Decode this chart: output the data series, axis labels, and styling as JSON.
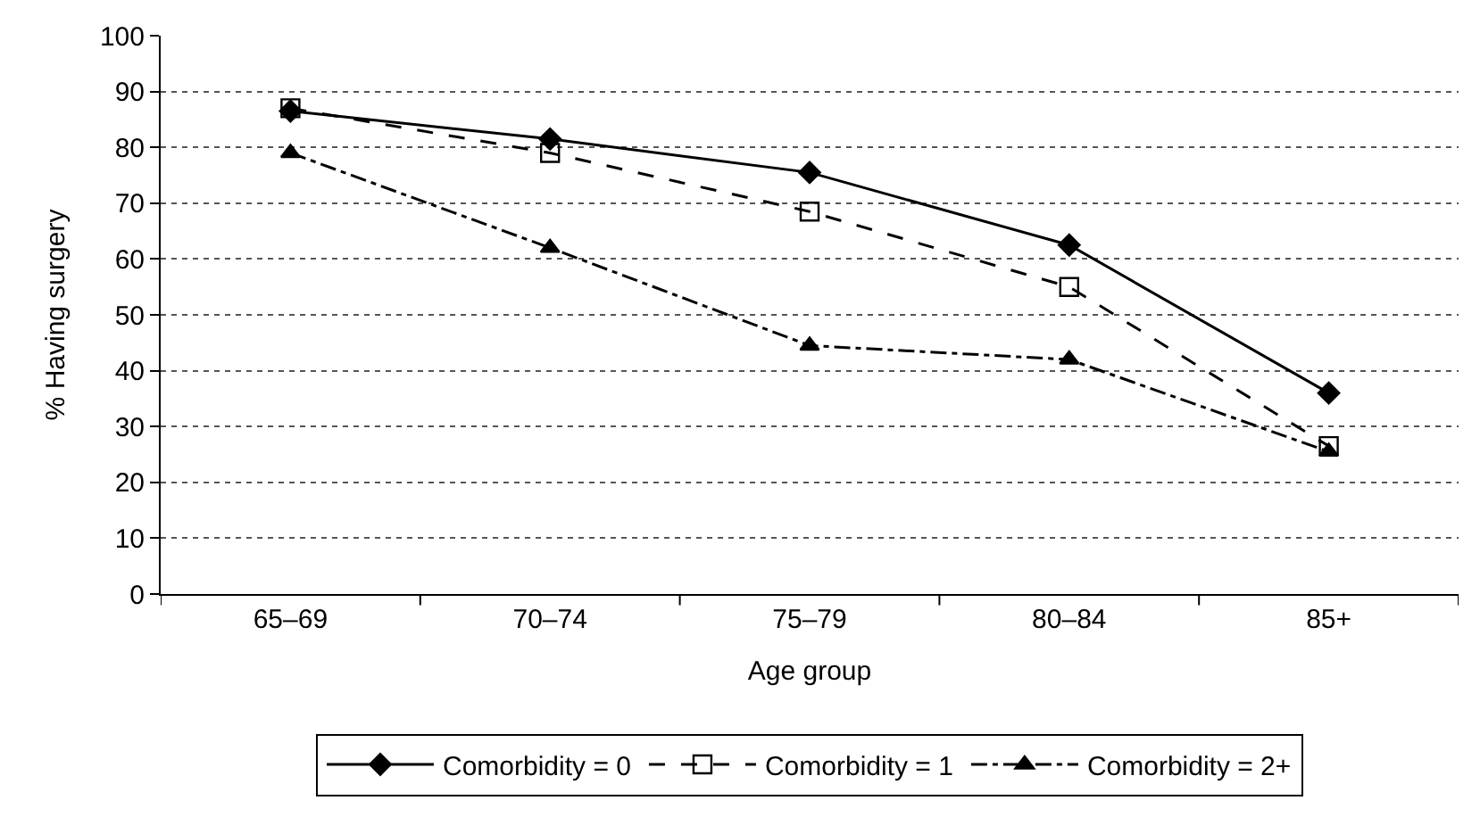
{
  "chart_data": {
    "type": "line",
    "xlabel": "Age group",
    "ylabel": "% Having surgery",
    "categories": [
      "65–69",
      "70–74",
      "75–79",
      "80–84",
      "85+"
    ],
    "series": [
      {
        "name": "Comorbidity = 0",
        "color": "#000000",
        "marker": "diamond",
        "line_style": "solid",
        "values": [
          86.5,
          81.5,
          75.5,
          62.5,
          36
        ]
      },
      {
        "name": "Comorbidity = 1",
        "color": "#000000",
        "marker": "square",
        "line_style": "dashed",
        "values": [
          87,
          79,
          68.5,
          55,
          26.5
        ]
      },
      {
        "name": "Comorbidity = 2+",
        "color": "#000000",
        "marker": "triangle",
        "line_style": "dashdot",
        "values": [
          79,
          62,
          44.5,
          42,
          25.5
        ]
      }
    ],
    "ylim": [
      0,
      100
    ],
    "yticks": [
      0,
      10,
      20,
      30,
      40,
      50,
      60,
      70,
      80,
      90,
      100
    ],
    "grid": "y",
    "legend": "bottom"
  }
}
